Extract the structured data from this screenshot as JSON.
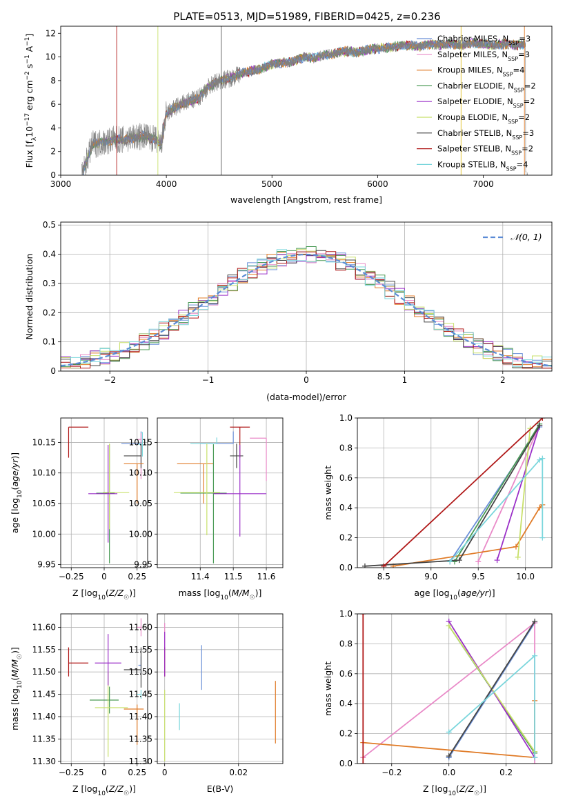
{
  "figure": {
    "title": "PLATE=0513, MJD=51989, FIBERID=0425, z=0.236"
  },
  "colors": {
    "Chabrier MILES": "#6a8fd8",
    "Salpeter MILES": "#e98ac8",
    "Kroupa MILES": "#e07b27",
    "Chabrier ELODIE": "#4a9a55",
    "Salpeter ELODIE": "#9b30c8",
    "Kroupa ELODIE": "#c8e06a",
    "Chabrier STELIB": "#444444",
    "Salpeter STELIB": "#b01818",
    "Kroupa STELIB": "#7ad6dc",
    "normal": "#5b8bd6",
    "spectrum": "#808080"
  },
  "chart_data": [
    {
      "id": "spectrum",
      "type": "line",
      "title": "PLATE=0513, MJD=51989, FIBERID=0425, z=0.236",
      "xlabel": "wavelength [Angstrom, rest frame]",
      "ylabel": "Flux [f_λ 10^-17 erg cm^-2 s^-1 A^-1]",
      "xlim": [
        3000,
        7650
      ],
      "ylim": [
        0,
        12.6
      ],
      "xticks": [
        3000,
        4000,
        5000,
        6000,
        7000
      ],
      "yticks": [
        0,
        2,
        4,
        6,
        8,
        10,
        12
      ],
      "grid": false,
      "legend_position": "top-right",
      "legend": [
        {
          "model": "Chabrier MILES",
          "label": "Chabrier MILES, N",
          "n": "SSP",
          "eq": "=3"
        },
        {
          "model": "Salpeter MILES",
          "label": "Salpeter MILES, N",
          "n": "SSP",
          "eq": "=3"
        },
        {
          "model": "Kroupa MILES",
          "label": "Kroupa MILES, N",
          "n": "SSP",
          "eq": "=4"
        },
        {
          "model": "Chabrier ELODIE",
          "label": "Chabrier ELODIE, N",
          "n": "SSP",
          "eq": "=2"
        },
        {
          "model": "Salpeter ELODIE",
          "label": "Salpeter ELODIE, N",
          "n": "SSP",
          "eq": "=2"
        },
        {
          "model": "Kroupa ELODIE",
          "label": "Kroupa ELODIE, N",
          "n": "SSP",
          "eq": "=2"
        },
        {
          "model": "Chabrier STELIB",
          "label": "Chabrier STELIB, N",
          "n": "SSP",
          "eq": "=3"
        },
        {
          "model": "Salpeter STELIB",
          "label": "Salpeter STELIB, N",
          "n": "SSP",
          "eq": "=2"
        },
        {
          "model": "Kroupa STELIB",
          "label": "Kroupa STELIB, N",
          "n": "SSP",
          "eq": "=4"
        }
      ],
      "continuum": {
        "x": [
          3200,
          3300,
          3400,
          3500,
          3600,
          3700,
          3800,
          3900,
          3950,
          4000,
          4100,
          4200,
          4300,
          4400,
          4500,
          4600,
          4700,
          4800,
          4900,
          5000,
          5100,
          5200,
          5300,
          5400,
          5500,
          5600,
          5700,
          5800,
          5900,
          6000,
          6100,
          6200,
          6300,
          6400,
          6500,
          6600,
          6700,
          6800,
          6900,
          7000,
          7100,
          7200,
          7300,
          7400
        ],
        "y": [
          0,
          2.6,
          2.8,
          3.0,
          3.0,
          3.2,
          3.3,
          3.0,
          2.5,
          5.2,
          5.8,
          6.2,
          6.5,
          7.5,
          8.0,
          8.2,
          8.6,
          8.8,
          9.0,
          9.4,
          9.5,
          9.6,
          10.0,
          9.9,
          10.2,
          10.3,
          10.5,
          10.4,
          10.6,
          10.7,
          10.8,
          10.9,
          11.0,
          10.9,
          11.1,
          11.0,
          11.1,
          11.0,
          11.2,
          11.1,
          11.0,
          11.1,
          11.0,
          11.1
        ]
      }
    },
    {
      "id": "residuals",
      "type": "line",
      "xlabel": "(data-model)/error",
      "ylabel": "Normed distribution",
      "xlim": [
        -2.5,
        2.5
      ],
      "ylim": [
        0,
        0.51
      ],
      "xticks": [
        -2,
        -1,
        0,
        1,
        2
      ],
      "yticks": [
        0.0,
        0.1,
        0.2,
        0.3,
        0.4,
        0.5
      ],
      "grid": true,
      "legend_position": "top-right",
      "legend": [
        {
          "label": "𝒩(0, 1)"
        }
      ],
      "bin_width": 0.1,
      "histogram_values_gaussian_approx": true
    },
    {
      "id": "age_vs_Z",
      "type": "scatter",
      "xlabel": "Z [log10(Z/Z☉)]",
      "ylabel": "age [log10(age/yr)]",
      "xlim": [
        -0.33,
        0.33
      ],
      "ylim": [
        9.945,
        10.19
      ],
      "xticks": [
        -0.25,
        0.0,
        0.25
      ],
      "yticks": [
        9.95,
        10.0,
        10.05,
        10.1,
        10.15
      ],
      "grid": true,
      "points": [
        {
          "model": "Salpeter STELIB",
          "x": -0.27,
          "y": 10.175,
          "xerr": [
            0.0,
            0.15
          ],
          "yerr": [
            0.05,
            0.0
          ]
        },
        {
          "model": "Chabrier MILES",
          "x": 0.28,
          "y": 10.148,
          "xerr": [
            0.15,
            0.0
          ],
          "yerr": [
            0.0,
            0.02
          ]
        },
        {
          "model": "Salpeter MILES",
          "x": 0.28,
          "y": 10.155,
          "xerr": [
            0.03,
            0.0
          ],
          "yerr": [
            0.065,
            0.01
          ]
        },
        {
          "model": "Chabrier STELIB",
          "x": 0.28,
          "y": 10.128,
          "xerr": [
            0.13,
            0.0
          ],
          "yerr": [
            0.02,
            0.02
          ]
        },
        {
          "model": "Kroupa MILES",
          "x": 0.25,
          "y": 10.115,
          "xerr": [
            0.1,
            0.05
          ],
          "yerr": [
            0.065,
            0.0
          ]
        },
        {
          "model": "Kroupa STELIB",
          "x": 0.29,
          "y": 10.147,
          "xerr": [
            0.03,
            0.0
          ],
          "yerr": [
            0.02,
            0.02
          ]
        },
        {
          "model": "Chabrier ELODIE",
          "x": 0.04,
          "y": 10.067,
          "xerr": [
            0.1,
            0.04
          ],
          "yerr": [
            0.115,
            0.08
          ]
        },
        {
          "model": "Kroupa ELODIE",
          "x": 0.04,
          "y": 10.068,
          "xerr": [
            0.05,
            0.15
          ],
          "yerr": [
            0.06,
            0.08
          ]
        },
        {
          "model": "Salpeter ELODIE",
          "x": 0.03,
          "y": 10.066,
          "xerr": [
            0.15,
            0.07
          ],
          "yerr": [
            0.08,
            0.08
          ]
        }
      ]
    },
    {
      "id": "age_vs_mass",
      "type": "scatter",
      "xlabel": "mass [log10(M/M☉)]",
      "ylabel": "",
      "xlim": [
        11.27,
        11.65
      ],
      "ylim": [
        9.945,
        10.19
      ],
      "xticks": [
        11.4,
        11.5,
        11.6
      ],
      "yticks": [
        9.95,
        10.0,
        10.05,
        10.1,
        10.15
      ],
      "grid": true,
      "points": [
        {
          "model": "Salpeter STELIB",
          "x": 11.52,
          "y": 10.175,
          "xerr": [
            0.03,
            0.03
          ],
          "yerr": [
            0.05,
            0.0
          ]
        },
        {
          "model": "Chabrier MILES",
          "x": 11.5,
          "y": 10.148,
          "xerr": [
            0.1,
            0.0
          ],
          "yerr": [
            0.0,
            0.02
          ]
        },
        {
          "model": "Salpeter MILES",
          "x": 11.6,
          "y": 10.157,
          "xerr": [
            0.05,
            0.0
          ],
          "yerr": [
            0.07,
            0.0
          ]
        },
        {
          "model": "Chabrier STELIB",
          "x": 11.51,
          "y": 10.128,
          "xerr": [
            0.02,
            0.02
          ],
          "yerr": [
            0.02,
            0.02
          ]
        },
        {
          "model": "Kroupa MILES",
          "x": 11.41,
          "y": 10.115,
          "xerr": [
            0.08,
            0.03
          ],
          "yerr": [
            0.065,
            0.0
          ]
        },
        {
          "model": "Kroupa STELIB",
          "x": 11.45,
          "y": 10.148,
          "xerr": [
            0.08,
            0.0
          ],
          "yerr": [
            0.0,
            0.01
          ]
        },
        {
          "model": "Chabrier ELODIE",
          "x": 11.44,
          "y": 10.067,
          "xerr": [
            0.1,
            0.04
          ],
          "yerr": [
            0.115,
            0.08
          ]
        },
        {
          "model": "Kroupa ELODIE",
          "x": 11.42,
          "y": 10.068,
          "xerr": [
            0.1,
            0.04
          ],
          "yerr": [
            0.07,
            0.08
          ]
        },
        {
          "model": "Salpeter ELODIE",
          "x": 11.52,
          "y": 10.066,
          "xerr": [
            0.08,
            0.08
          ],
          "yerr": [
            0.07,
            0.08
          ]
        }
      ]
    },
    {
      "id": "weight_vs_age",
      "type": "line",
      "xlabel": "age [log10(age/yr)]",
      "ylabel": "mass weight",
      "xlim": [
        8.22,
        10.28
      ],
      "ylim": [
        0.0,
        1.0
      ],
      "xticks": [
        8.5,
        9.0,
        9.5,
        10.0
      ],
      "yticks": [
        0.0,
        0.2,
        0.4,
        0.6,
        0.8,
        1.0
      ],
      "grid": true,
      "series": [
        {
          "model": "Chabrier MILES",
          "x": [
            9.2,
            10.15
          ],
          "y": [
            0.04,
            0.94
          ]
        },
        {
          "model": "Salpeter MILES",
          "x": [
            9.5,
            10.15
          ],
          "y": [
            0.04,
            0.95
          ]
        },
        {
          "model": "Kroupa MILES",
          "x": [
            8.6,
            9.9,
            10.15,
            10.18
          ],
          "y": [
            0.01,
            0.14,
            0.4,
            0.42
          ]
        },
        {
          "model": "Chabrier ELODIE",
          "x": [
            9.25,
            10.15
          ],
          "y": [
            0.04,
            0.96
          ]
        },
        {
          "model": "Salpeter ELODIE",
          "x": [
            9.7,
            10.15
          ],
          "y": [
            0.05,
            0.95
          ]
        },
        {
          "model": "Kroupa ELODIE",
          "x": [
            9.92,
            10.05
          ],
          "y": [
            0.07,
            0.93
          ]
        },
        {
          "model": "Chabrier STELIB",
          "x": [
            8.3,
            9.3,
            10.15
          ],
          "y": [
            0.01,
            0.05,
            0.95
          ]
        },
        {
          "model": "Salpeter STELIB",
          "x": [
            8.5,
            10.18
          ],
          "y": [
            0.01,
            1.0
          ]
        },
        {
          "model": "Kroupa STELIB",
          "x": [
            9.2,
            10.15,
            10.18,
            10.18
          ],
          "y": [
            0.04,
            0.72,
            0.73,
            0.2
          ]
        }
      ]
    },
    {
      "id": "mass_vs_Z",
      "type": "scatter",
      "xlabel": "Z [log10(Z/Z☉)]",
      "ylabel": "mass [log10(M/M☉)]",
      "xlim": [
        -0.33,
        0.33
      ],
      "ylim": [
        11.295,
        11.63
      ],
      "xticks": [
        -0.25,
        0.0,
        0.25
      ],
      "yticks": [
        11.3,
        11.35,
        11.4,
        11.45,
        11.5,
        11.55,
        11.6
      ],
      "grid": true,
      "points": [
        {
          "model": "Salpeter STELIB",
          "x": -0.27,
          "y": 11.52,
          "xerr": [
            0.0,
            0.15
          ],
          "yerr": [
            0.03,
            0.035
          ]
        },
        {
          "model": "Salpeter MILES",
          "x": 0.28,
          "y": 11.6,
          "xerr": [
            0.03,
            0.0
          ],
          "yerr": [
            0.02,
            0.02
          ]
        },
        {
          "model": "Chabrier MILES",
          "x": 0.28,
          "y": 11.515,
          "xerr": [
            0.02,
            0.0
          ],
          "yerr": [
            0.02,
            0.02
          ]
        },
        {
          "model": "Chabrier STELIB",
          "x": 0.28,
          "y": 11.505,
          "xerr": [
            0.13,
            0.0
          ],
          "yerr": [
            0.04,
            0.05
          ]
        },
        {
          "model": "Kroupa STELIB",
          "x": 0.28,
          "y": 11.45,
          "xerr": [
            0.03,
            0.0
          ],
          "yerr": [
            0.01,
            0.01
          ]
        },
        {
          "model": "Kroupa MILES",
          "x": 0.25,
          "y": 11.417,
          "xerr": [
            0.1,
            0.05
          ],
          "yerr": [
            0.08,
            0.01
          ]
        },
        {
          "model": "Chabrier ELODIE",
          "x": 0.04,
          "y": 11.437,
          "xerr": [
            0.15,
            0.07
          ],
          "yerr": [
            0.03,
            0.03
          ]
        },
        {
          "model": "Kroupa ELODIE",
          "x": 0.03,
          "y": 11.42,
          "xerr": [
            0.1,
            0.15
          ],
          "yerr": [
            0.11,
            0.08
          ]
        },
        {
          "model": "Salpeter ELODIE",
          "x": 0.03,
          "y": 11.52,
          "xerr": [
            0.1,
            0.1
          ],
          "yerr": [
            0.05,
            0.065
          ]
        }
      ]
    },
    {
      "id": "mass_vs_EBV",
      "type": "scatter",
      "xlabel": "E(B-V)",
      "ylabel": "",
      "xlim": [
        -0.002,
        0.032
      ],
      "ylim": [
        11.295,
        11.63
      ],
      "xticks": [
        0.0,
        0.02
      ],
      "yticks": [
        11.3,
        11.35,
        11.4,
        11.45,
        11.5,
        11.55,
        11.6
      ],
      "grid": true,
      "points": [
        {
          "model": "Salpeter MILES",
          "x": 0.0,
          "y": 11.58,
          "yerr": [
            0.03,
            0.03
          ]
        },
        {
          "model": "Salpeter STELIB",
          "x": 0.0,
          "y": 11.52,
          "yerr": [
            0.03,
            0.035
          ]
        },
        {
          "model": "Salpeter ELODIE",
          "x": 0.0,
          "y": 11.54,
          "yerr": [
            0.05,
            0.05
          ]
        },
        {
          "model": "Kroupa ELODIE",
          "x": 0.0,
          "y": 11.38,
          "yerr": [
            0.08,
            0.08
          ]
        },
        {
          "model": "Kroupa STELIB",
          "x": 0.004,
          "y": 11.4,
          "yerr": [
            0.03,
            0.03
          ]
        },
        {
          "model": "Chabrier MILES",
          "x": 0.01,
          "y": 11.51,
          "yerr": [
            0.05,
            0.05
          ]
        },
        {
          "model": "Kroupa MILES",
          "x": 0.03,
          "y": 11.41,
          "yerr": [
            0.07,
            0.07
          ]
        }
      ]
    },
    {
      "id": "weight_vs_Z",
      "type": "line",
      "xlabel": "Z [log10(Z/Z☉)]",
      "ylabel": "mass weight",
      "xlim": [
        -0.32,
        0.36
      ],
      "ylim": [
        0.0,
        1.0
      ],
      "xticks": [
        -0.2,
        0.0,
        0.2
      ],
      "yticks": [
        0.0,
        0.2,
        0.4,
        0.6,
        0.8,
        1.0
      ],
      "grid": true,
      "series": [
        {
          "model": "Chabrier MILES",
          "x": [
            0.0,
            0.3
          ],
          "y": [
            0.04,
            0.94
          ]
        },
        {
          "model": "Salpeter MILES",
          "x": [
            -0.3,
            0.3,
            0.3
          ],
          "y": [
            0.04,
            0.94,
            0.0
          ]
        },
        {
          "model": "Kroupa MILES",
          "x": [
            -0.3,
            0.3,
            0.3
          ],
          "y": [
            0.14,
            0.04,
            0.42
          ]
        },
        {
          "model": "Chabrier ELODIE",
          "x": [
            0.0,
            0.3
          ],
          "y": [
            0.92,
            0.07
          ]
        },
        {
          "model": "Salpeter ELODIE",
          "x": [
            0.0,
            0.3
          ],
          "y": [
            0.95,
            0.04
          ]
        },
        {
          "model": "Kroupa ELODIE",
          "x": [
            0.0,
            0.3
          ],
          "y": [
            0.92,
            0.08
          ]
        },
        {
          "model": "Chabrier STELIB",
          "x": [
            0.0,
            0.3
          ],
          "y": [
            0.05,
            0.95
          ]
        },
        {
          "model": "Salpeter STELIB",
          "x": [
            -0.3,
            -0.3
          ],
          "y": [
            0.0,
            1.0
          ]
        },
        {
          "model": "Kroupa STELIB",
          "x": [
            0.0,
            0.3,
            0.3
          ],
          "y": [
            0.21,
            0.72,
            0.04
          ]
        }
      ]
    }
  ]
}
